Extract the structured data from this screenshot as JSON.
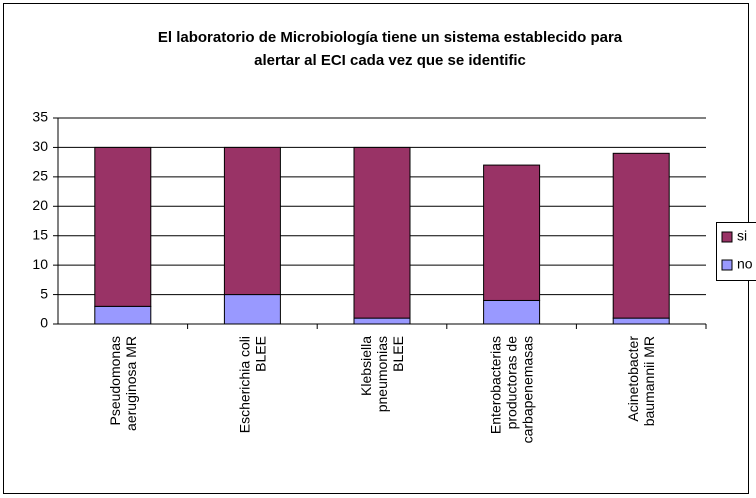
{
  "chart_data": {
    "type": "bar",
    "stacked": true,
    "title": "El laboratorio de Microbiología tiene un sistema establecido para\nalertar al ECI cada vez que se identific",
    "categories": [
      "Pseudomonas\naeruginosa MR",
      "Escherichia coli\nBLEE",
      "Klebsiella\npneumonias\nBLEE",
      "Enterobacterias\nproductoras de\ncarbapenemasas",
      "Acinetobacter\nbaumannii MR"
    ],
    "series": [
      {
        "name": "no",
        "color": "#9999ff",
        "values": [
          3,
          5,
          1,
          4,
          1
        ]
      },
      {
        "name": "si",
        "color": "#993366",
        "values": [
          27,
          25,
          29,
          23,
          28
        ]
      }
    ],
    "ylim": [
      0,
      35
    ],
    "yticks": [
      0,
      5,
      10,
      15,
      20,
      25,
      30,
      35
    ],
    "grid": true,
    "legend": "right"
  }
}
